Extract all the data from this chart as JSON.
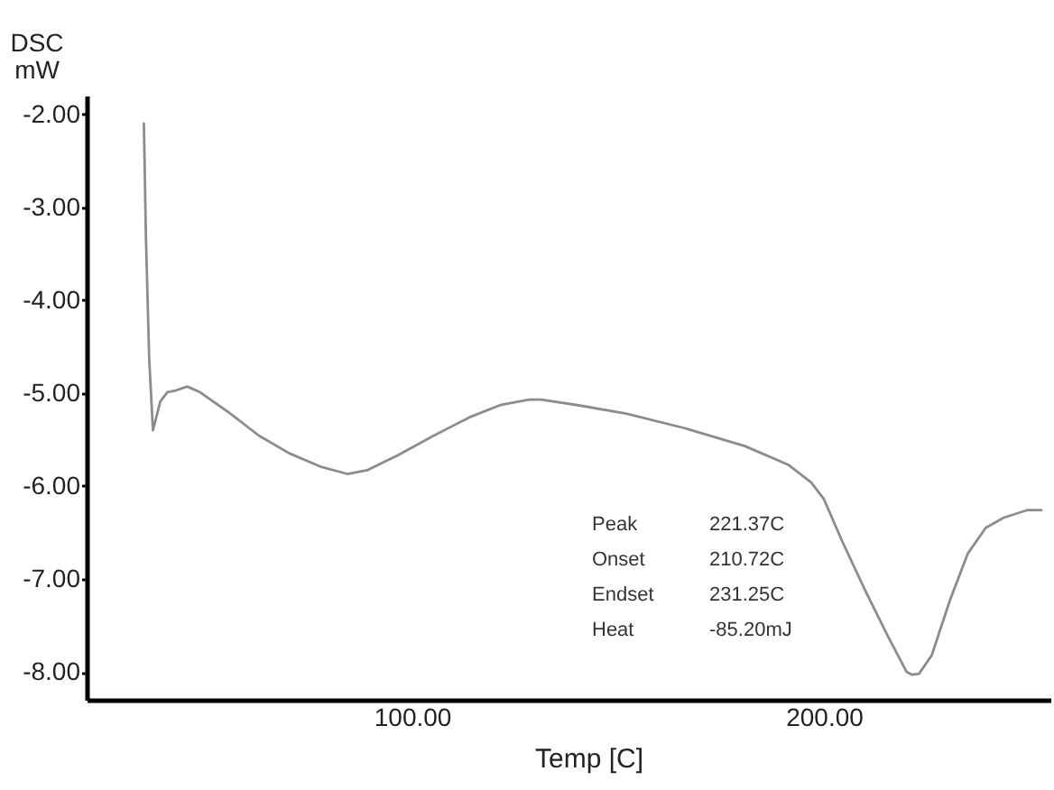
{
  "chart_data": {
    "type": "line",
    "xlabel": "Temp [C]",
    "ylabel": "DSC\nmW",
    "xlim": [
      21,
      255
    ],
    "ylim": [
      -8.3,
      -1.8
    ],
    "xticks": [
      {
        "value": 100,
        "label": "100.00"
      },
      {
        "value": 200,
        "label": "200.00"
      }
    ],
    "yticks": [
      {
        "value": -2,
        "label": "-2.00"
      },
      {
        "value": -3,
        "label": "-3.00"
      },
      {
        "value": -4,
        "label": "-4.00"
      },
      {
        "value": -5,
        "label": "-5.00"
      },
      {
        "value": -6,
        "label": "-6.00"
      },
      {
        "value": -7,
        "label": "-7.00"
      },
      {
        "value": -8,
        "label": "-8.00"
      }
    ],
    "x": [
      34.9,
      35.4,
      36.2,
      37.1,
      38.9,
      40.6,
      42.8,
      45.4,
      48.5,
      55.9,
      62.9,
      70.3,
      77.7,
      84.3,
      89.1,
      96.5,
      105.2,
      114.0,
      121.4,
      128.4,
      131.4,
      140.2,
      152.0,
      166.4,
      180.8,
      191.3,
      196.9,
      200.0,
      204.4,
      210.0,
      215.7,
      220.1,
      221.4,
      223.1,
      226.2,
      230.6,
      234.9,
      239.3,
      243.7,
      249.3,
      252.8
    ],
    "series": [
      {
        "color": "#8c8c8c",
        "values": [
          -2.1,
          -3.33,
          -4.64,
          -5.4,
          -5.09,
          -4.99,
          -4.97,
          -4.93,
          -4.99,
          -5.22,
          -5.46,
          -5.65,
          -5.79,
          -5.87,
          -5.83,
          -5.67,
          -5.46,
          -5.26,
          -5.13,
          -5.07,
          -5.07,
          -5.13,
          -5.22,
          -5.38,
          -5.57,
          -5.77,
          -5.96,
          -6.14,
          -6.59,
          -7.12,
          -7.63,
          -8.0,
          -8.03,
          -8.02,
          -7.82,
          -7.23,
          -6.73,
          -6.45,
          -6.34,
          -6.26,
          -6.26
        ]
      }
    ],
    "annotations": [
      "Peak 221.37C",
      "Onset 210.72C",
      "Endset 231.25C",
      "Heat -85.20mJ"
    ]
  }
}
